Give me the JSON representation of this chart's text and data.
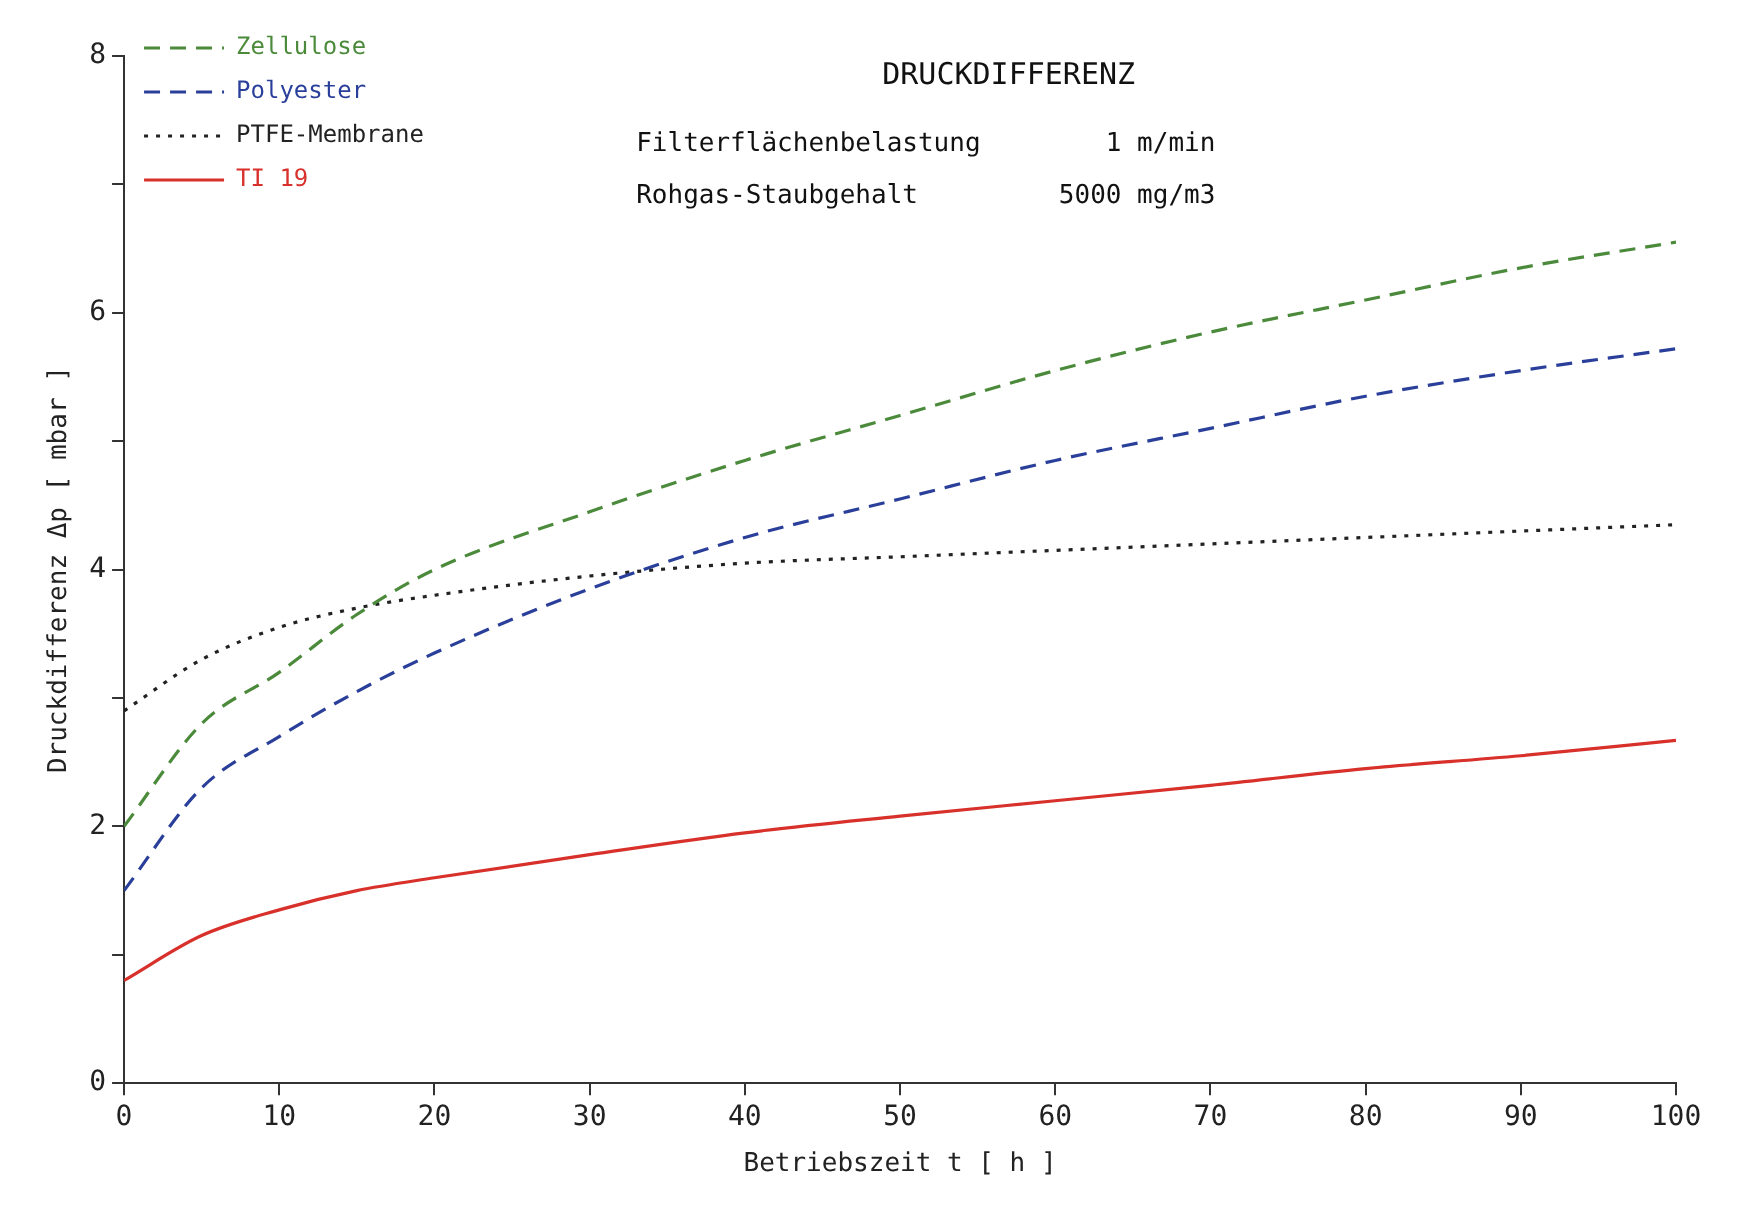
{
  "chart_data": {
    "type": "line",
    "title": "DRUCKDIFFERENZ",
    "xlabel": "Betriebszeit t [ h ]",
    "ylabel": "Druckdifferenz Δp [ mbar ]",
    "annotations": [
      "Filterflächenbelastung        1 m/min",
      "Rohgas-Staubgehalt         5000 mg/m3"
    ],
    "x": [
      0,
      5,
      10,
      15,
      20,
      30,
      40,
      50,
      60,
      70,
      80,
      90,
      100
    ],
    "series": [
      {
        "name": "Zellulose",
        "color": "#4a8a3a",
        "line_style": "dashed",
        "values": [
          2.0,
          2.8,
          3.2,
          3.65,
          4.0,
          4.45,
          4.85,
          5.2,
          5.55,
          5.85,
          6.1,
          6.35,
          6.55
        ]
      },
      {
        "name": "Polyester",
        "color": "#2a3f9a",
        "line_style": "dashed",
        "values": [
          1.5,
          2.3,
          2.7,
          3.05,
          3.35,
          3.85,
          4.25,
          4.55,
          4.85,
          5.1,
          5.35,
          5.55,
          5.72
        ]
      },
      {
        "name": "PTFE-Membrane",
        "color": "#222222",
        "line_style": "dotted",
        "values": [
          2.9,
          3.3,
          3.55,
          3.7,
          3.8,
          3.95,
          4.05,
          4.1,
          4.15,
          4.2,
          4.25,
          4.3,
          4.35
        ]
      },
      {
        "name": "TI 19",
        "color": "#d8302a",
        "line_style": "solid",
        "values": [
          0.8,
          1.15,
          1.35,
          1.5,
          1.6,
          1.78,
          1.95,
          2.08,
          2.2,
          2.32,
          2.45,
          2.55,
          2.67
        ]
      }
    ],
    "xlim": [
      0,
      100
    ],
    "xticks": [
      0,
      10,
      20,
      30,
      40,
      50,
      60,
      70,
      80,
      90,
      100
    ],
    "ylim": [
      0,
      8
    ],
    "yticks": [
      0,
      {
        "value": 1,
        "label": null
      },
      2,
      {
        "value": 3,
        "label": null
      },
      4,
      {
        "value": 5,
        "label": null
      },
      6,
      {
        "value": 7,
        "label": null
      },
      8
    ],
    "grid": false,
    "legend": "top left",
    "marker": "none"
  }
}
